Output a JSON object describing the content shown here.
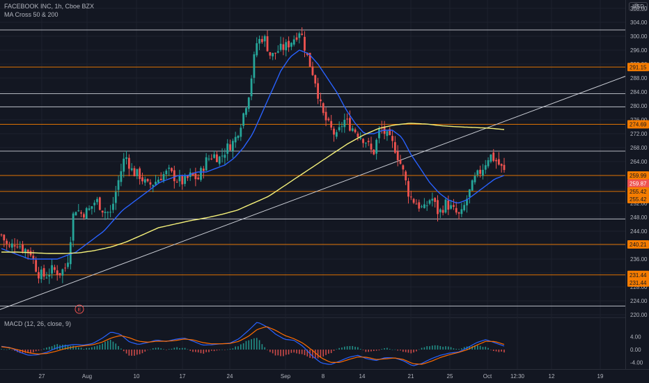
{
  "header": {
    "symbol_line": "FACEBOOK INC, 1h, Cboe BZX",
    "indicator_line": "MA Cross 50 & 200",
    "macd_line": "MACD (12, 26, close, 9)",
    "currency": "USD"
  },
  "colors": {
    "background": "#131722",
    "grid": "#1e222d",
    "candle_up": "#26a69a",
    "candle_down": "#ef5350",
    "ma50": "#2962ff",
    "ma200": "#f5f17a",
    "trendline": "#d1d4dc",
    "white_level": "#d1d4dc",
    "orange_level": "#f57c00",
    "macd_line": "#2962ff",
    "signal_line": "#ff6d00"
  },
  "chart_data": {
    "type": "candlestick",
    "title": "FACEBOOK INC, 1h, Cboe BZX",
    "y_axis_price": {
      "ticks": [
        220,
        224,
        228,
        232,
        236,
        240,
        244,
        248,
        252,
        256,
        260,
        264,
        268,
        272,
        276,
        280,
        284,
        288,
        292,
        296,
        300,
        304,
        308
      ],
      "range": [
        219,
        310
      ]
    },
    "y_axis_macd": {
      "ticks": [
        4.0,
        0.0,
        -4.0
      ],
      "tick_labels": [
        "4.00",
        "0.00",
        "-4.00"
      ],
      "range": [
        -6,
        8
      ]
    },
    "x_axis": {
      "tick_labels": [
        "27",
        "Aug",
        "10",
        "17",
        "24",
        "Sep",
        "8",
        "14",
        "21",
        "25",
        "Oct",
        "12:30",
        "12",
        "19"
      ]
    },
    "price_labels": [
      {
        "value": 291.15,
        "label": "291.15",
        "style": "orange"
      },
      {
        "value": 274.69,
        "label": "274.69",
        "style": "orange"
      },
      {
        "value": 259.99,
        "label": "259.99",
        "style": "orange"
      },
      {
        "value": 259.87,
        "label": "259.87",
        "style": "red"
      },
      {
        "value": 255.42,
        "label": "255.42",
        "style": "orange"
      },
      {
        "value": 255.42,
        "label": "255.42",
        "style": "orange"
      },
      {
        "value": 240.21,
        "label": "240.21",
        "style": "orange"
      },
      {
        "value": 231.44,
        "label": "231.44",
        "style": "orange"
      },
      {
        "value": 231.44,
        "label": "231.44",
        "style": "orange"
      }
    ],
    "horizontal_levels": [
      {
        "value": 301.8,
        "color": "white"
      },
      {
        "value": 291.15,
        "color": "orange"
      },
      {
        "value": 283.5,
        "color": "white"
      },
      {
        "value": 279.7,
        "color": "white"
      },
      {
        "value": 274.69,
        "color": "orange"
      },
      {
        "value": 267.0,
        "color": "white"
      },
      {
        "value": 259.99,
        "color": "orange"
      },
      {
        "value": 255.42,
        "color": "orange"
      },
      {
        "value": 247.5,
        "color": "white"
      },
      {
        "value": 240.21,
        "color": "orange"
      },
      {
        "value": 231.44,
        "color": "orange"
      },
      {
        "value": 222.5,
        "color": "white"
      }
    ],
    "trendline": {
      "from": {
        "bar": 0,
        "price": 221.5
      },
      "to": {
        "bar": 190,
        "price": 288.5
      }
    },
    "close_series": [
      243,
      239,
      241,
      239,
      238,
      232,
      231,
      233,
      232,
      234,
      251,
      249,
      250,
      253,
      250,
      249,
      258,
      266,
      261,
      260,
      257,
      258,
      260,
      261,
      259,
      258,
      260,
      259,
      264,
      266,
      265,
      268,
      270,
      276,
      284,
      298,
      300,
      294,
      296,
      297,
      299,
      302,
      294,
      288,
      278,
      274,
      271,
      276,
      274,
      272,
      270,
      266,
      274,
      271,
      268,
      262,
      254,
      252,
      250,
      254,
      249,
      252,
      250,
      248,
      254,
      259,
      262,
      266,
      264,
      261
    ],
    "ma50_series": [
      239,
      238,
      237,
      236,
      236,
      236,
      236,
      237,
      238,
      240,
      242,
      244,
      247,
      250,
      252,
      254,
      256,
      258,
      259,
      260,
      260,
      261,
      261,
      262,
      263,
      265,
      268,
      272,
      278,
      284,
      290,
      294,
      296,
      295,
      292,
      288,
      284,
      279,
      275,
      272,
      272,
      273,
      273,
      271,
      266,
      262,
      258,
      255,
      253,
      252,
      253,
      255,
      257,
      259,
      260
    ],
    "ma200_series": [
      238,
      238,
      237.8,
      237.6,
      237.6,
      237.8,
      238.5,
      239.5,
      241,
      243,
      245,
      246,
      247,
      247.8,
      248.8,
      250,
      252,
      254,
      257,
      260,
      263,
      266,
      269,
      271.5,
      273.5,
      274.5,
      275,
      274.8,
      274.3,
      274,
      273.8,
      273.6,
      273.2
    ],
    "macd_series": {
      "names": [
        "MACD",
        "Signal"
      ],
      "macd": [
        1,
        0.6,
        -0.8,
        -1.8,
        -1.6,
        -0.8,
        0.5,
        1.2,
        1.6,
        1.4,
        1.9,
        3.5,
        5.5,
        4.8,
        2.4,
        1.6,
        2.2,
        3.0,
        2.5,
        3.2,
        3.6,
        2.6,
        1.4,
        1.5,
        1.8,
        2.0,
        3.4,
        5.9,
        8.6,
        7.2,
        4.8,
        3.2,
        2.9,
        1.0,
        -2.0,
        -4.2,
        -4.7,
        -3.6,
        -2.4,
        -1.8,
        -2.9,
        -3.4,
        -2.5,
        -2.6,
        -3.5,
        -5.1,
        -4.3,
        -2.9,
        -1.8,
        -1.1,
        -0.8,
        0.6,
        2.2,
        3.1,
        2.1,
        1.1
      ],
      "signal": [
        0.9,
        0.5,
        -0.2,
        -1.0,
        -1.4,
        -1.2,
        -0.5,
        0.3,
        0.9,
        1.2,
        1.5,
        2.3,
        3.6,
        4.4,
        3.7,
        2.6,
        2.3,
        2.6,
        2.6,
        2.8,
        3.3,
        3.0,
        2.2,
        1.8,
        1.8,
        1.9,
        2.6,
        4.1,
        6.3,
        7.2,
        6.0,
        4.4,
        3.4,
        2.0,
        -0.2,
        -2.6,
        -4.0,
        -4.0,
        -3.1,
        -2.3,
        -2.4,
        -3.1,
        -2.9,
        -2.6,
        -3.1,
        -4.4,
        -4.6,
        -3.7,
        -2.5,
        -1.6,
        -0.9,
        0.0,
        1.4,
        2.6,
        2.5,
        1.6
      ]
    },
    "earnings_marker": "E"
  }
}
